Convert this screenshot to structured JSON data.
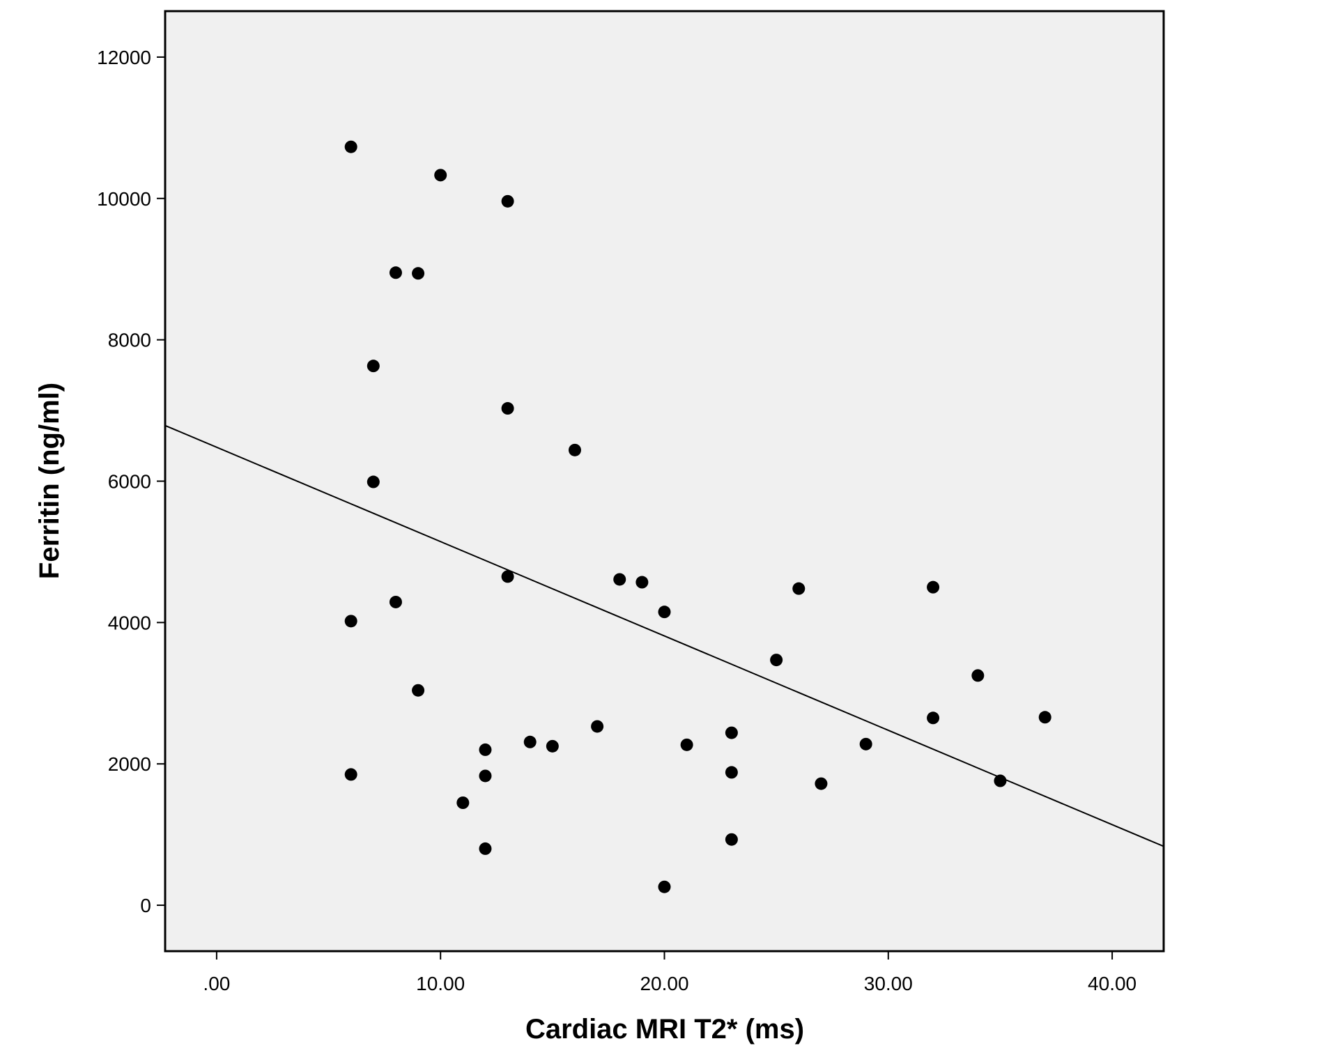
{
  "chart_data": {
    "type": "scatter",
    "title": "",
    "xlabel": "Cardiac MRI T2* (ms)",
    "ylabel": "Ferritin (ng/ml)",
    "xlim": [
      -2.3,
      42.3
    ],
    "ylim": [
      -650,
      12650
    ],
    "grid": false,
    "background_color": "#f0f0f0",
    "point_color": "#000000",
    "x_ticks": [
      {
        "value": 0,
        "label": ".00"
      },
      {
        "value": 10,
        "label": "10.00"
      },
      {
        "value": 20,
        "label": "20.00"
      },
      {
        "value": 30,
        "label": "30.00"
      },
      {
        "value": 40,
        "label": "40.00"
      }
    ],
    "y_ticks": [
      {
        "value": 0,
        "label": "0"
      },
      {
        "value": 2000,
        "label": "2000"
      },
      {
        "value": 4000,
        "label": "4000"
      },
      {
        "value": 6000,
        "label": "6000"
      },
      {
        "value": 8000,
        "label": "8000"
      },
      {
        "value": 10000,
        "label": "10000"
      },
      {
        "value": 12000,
        "label": "12000"
      }
    ],
    "points": [
      {
        "x": 6,
        "y": 10730
      },
      {
        "x": 10,
        "y": 10330
      },
      {
        "x": 13,
        "y": 9960
      },
      {
        "x": 8,
        "y": 8950
      },
      {
        "x": 9,
        "y": 8940
      },
      {
        "x": 7,
        "y": 7630
      },
      {
        "x": 13,
        "y": 7030
      },
      {
        "x": 16,
        "y": 6440
      },
      {
        "x": 7,
        "y": 5990
      },
      {
        "x": 13,
        "y": 4650
      },
      {
        "x": 18,
        "y": 4610
      },
      {
        "x": 19,
        "y": 4570
      },
      {
        "x": 26,
        "y": 4480
      },
      {
        "x": 32,
        "y": 4500
      },
      {
        "x": 8,
        "y": 4290
      },
      {
        "x": 20,
        "y": 4150
      },
      {
        "x": 6,
        "y": 4020
      },
      {
        "x": 25,
        "y": 3470
      },
      {
        "x": 34,
        "y": 3250
      },
      {
        "x": 9,
        "y": 3040
      },
      {
        "x": 32,
        "y": 2650
      },
      {
        "x": 37,
        "y": 2660
      },
      {
        "x": 17,
        "y": 2530
      },
      {
        "x": 23,
        "y": 2440
      },
      {
        "x": 14,
        "y": 2310
      },
      {
        "x": 29,
        "y": 2280
      },
      {
        "x": 21,
        "y": 2270
      },
      {
        "x": 15,
        "y": 2250
      },
      {
        "x": 12,
        "y": 2200
      },
      {
        "x": 23,
        "y": 1880
      },
      {
        "x": 6,
        "y": 1850
      },
      {
        "x": 12,
        "y": 1830
      },
      {
        "x": 35,
        "y": 1760
      },
      {
        "x": 27,
        "y": 1720
      },
      {
        "x": 11,
        "y": 1450
      },
      {
        "x": 23,
        "y": 930
      },
      {
        "x": 12,
        "y": 800
      },
      {
        "x": 20,
        "y": 260
      }
    ],
    "fit_line": {
      "type": "linear",
      "intercept": 6480,
      "slope": -133.5
    }
  }
}
